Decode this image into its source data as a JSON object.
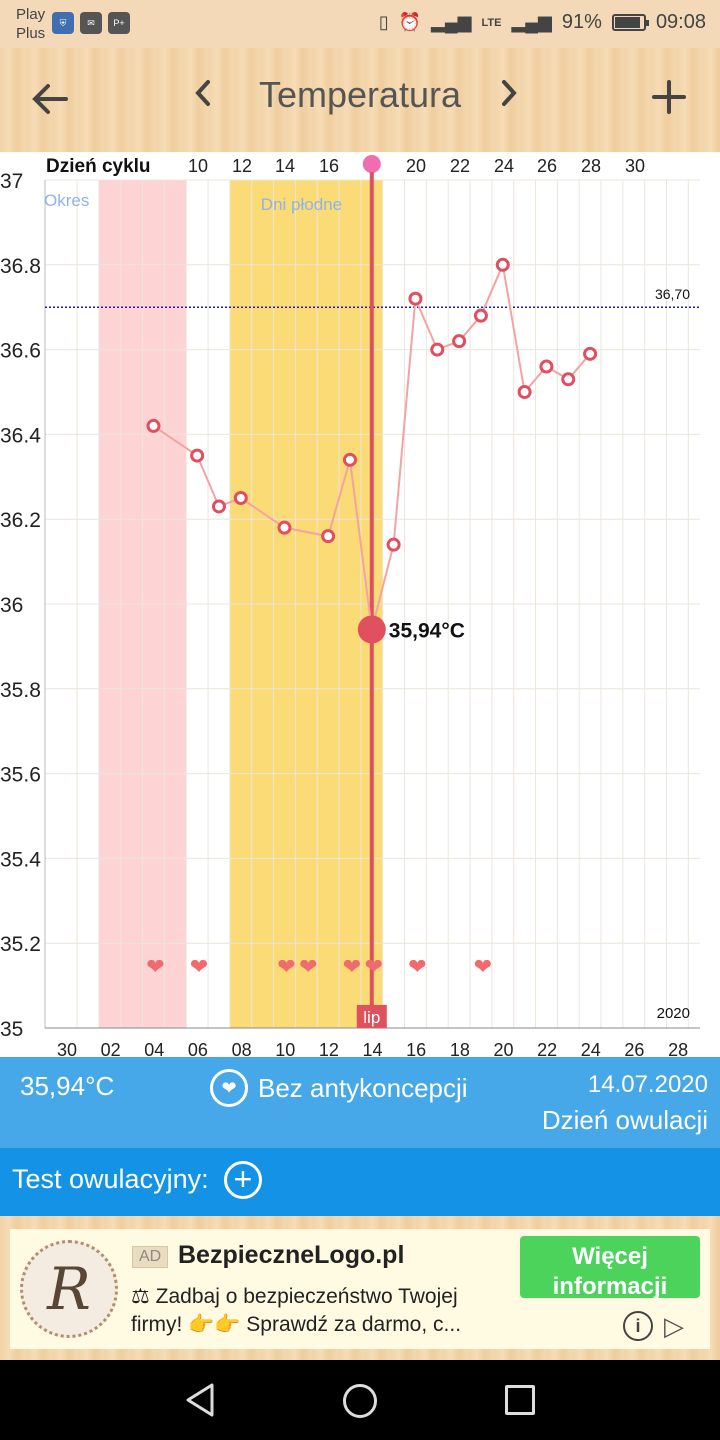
{
  "status_bar": {
    "carrier_line1": "Play",
    "carrier_line2": "Plus",
    "notification_icons": [
      "shield-icon",
      "gmail-icon",
      "play-plus-icon"
    ],
    "network": "LTE",
    "battery_percent": "91%",
    "battery_level": 0.91,
    "time": "09:08"
  },
  "app_bar": {
    "title": "Temperatura",
    "back_icon": "arrow-left-icon",
    "prev_icon": "chevron-left-icon",
    "next_icon": "chevron-right-icon",
    "add_icon": "plus-icon",
    "background": "#f4d6ad"
  },
  "chart_data": {
    "type": "line",
    "top_axis_label": "Dzień cyklu",
    "top_ticks": [
      "10",
      "12",
      "14",
      "16",
      "20",
      "22",
      "24",
      "26",
      "28",
      "30"
    ],
    "bottom_ticks": [
      "30",
      "02",
      "04",
      "06",
      "08",
      "10",
      "12",
      "14",
      "16",
      "18",
      "20",
      "22",
      "24",
      "26",
      "28"
    ],
    "y_ticks": [
      "37",
      "36.8",
      "36.6",
      "36.4",
      "36.2",
      "36",
      "35.8",
      "35.6",
      "35.4",
      "35.2",
      "35"
    ],
    "ylim": [
      35,
      37
    ],
    "grid": true,
    "year_label": "2020",
    "month_label": "lip",
    "period_label": "Okres",
    "fertile_label": "Dni płodne",
    "period_days": [
      1,
      4
    ],
    "fertile_days": [
      7,
      13
    ],
    "cover_line": {
      "value": 36.7,
      "label": "36,70",
      "color": "#1a1acc"
    },
    "series": [
      {
        "x": [
          3,
          5,
          6,
          7,
          9,
          11,
          12,
          13,
          14,
          15,
          16,
          17,
          18,
          19,
          20,
          21,
          22,
          23
        ],
        "values": [
          36.42,
          36.35,
          36.23,
          36.25,
          36.18,
          36.16,
          36.34,
          35.94,
          36.14,
          36.72,
          36.6,
          36.62,
          36.68,
          36.8,
          36.5,
          36.56,
          36.53,
          36.59
        ]
      }
    ],
    "selected": {
      "x": 13,
      "value": 35.94,
      "label": "35,94°C"
    },
    "intercourse_days": [
      3,
      5,
      9,
      10,
      12,
      13,
      15,
      18
    ],
    "colors": {
      "line": "#f4a3a3",
      "marker": "#e04f5f",
      "selected": "#e0505d",
      "period": "#fdd3d4",
      "fertile": "#fadb75",
      "heart": "#f06a6e"
    }
  },
  "info_panel": {
    "temperature": "35,94°C",
    "contraception_icon": "heart-icon",
    "contraception": "Bez antykoncepcji",
    "date": "14.07.2020",
    "day_type": "Dzień owulacji"
  },
  "ovulation_test": {
    "label": "Test owulacyjny:",
    "add_icon": "plus-circle-icon"
  },
  "ad": {
    "badge": "AD",
    "name": "BezpieczneLogo.pl",
    "logo_letter": "R",
    "line1": "⚖ Zadbaj o bezpieczeństwo Twojej",
    "line2": "firmy! 👉👉 Sprawdź za darmo, c...",
    "button": "Więcej informacji",
    "info_icon": "info-icon",
    "play_icon": "adchoices-icon"
  },
  "nav_bar": {
    "back_icon": "nav-back-icon",
    "home_icon": "nav-home-icon",
    "recent_icon": "nav-recent-icon"
  }
}
